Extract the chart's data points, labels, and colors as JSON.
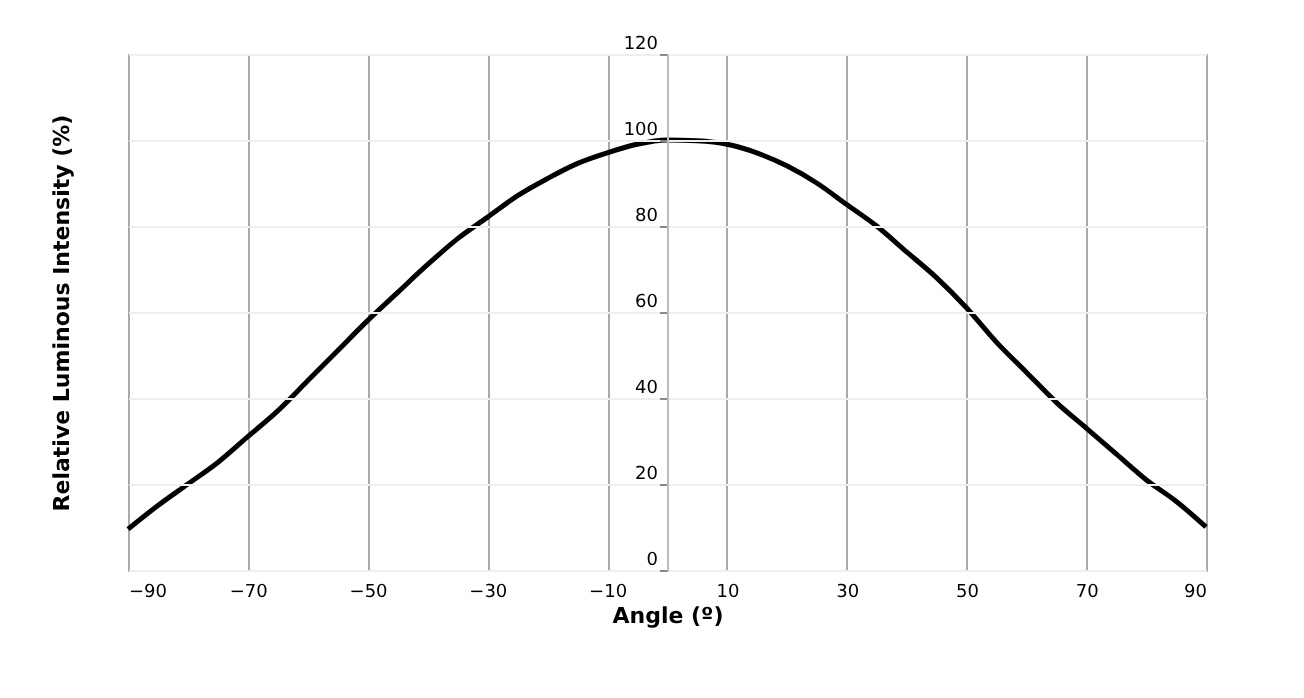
{
  "chart_data": {
    "type": "line",
    "xlabel": "Angle (º)",
    "ylabel": "Relative Luminous Intensity (%)",
    "x": [
      -90,
      -85,
      -80,
      -75,
      -70,
      -65,
      -60,
      -55,
      -50,
      -45,
      -40,
      -35,
      -30,
      -25,
      -20,
      -15,
      -10,
      -5,
      0,
      5,
      10,
      15,
      20,
      25,
      30,
      35,
      40,
      45,
      50,
      55,
      60,
      65,
      70,
      75,
      80,
      85,
      90
    ],
    "series": [
      {
        "color": "#000000",
        "values": [
          9.5,
          15,
          20,
          25,
          31,
          37,
          44,
          51,
          58,
          64.5,
          71,
          77,
          82,
          87,
          91,
          94.5,
          97,
          99,
          100,
          99.8,
          99,
          97,
          94,
          90,
          85,
          80,
          74,
          68,
          61,
          53,
          46,
          39,
          33,
          27,
          21,
          16,
          10
        ]
      }
    ],
    "xlim": [
      -90,
      90
    ],
    "xticks": [
      -90,
      -70,
      -50,
      -30,
      -10,
      10,
      30,
      50,
      70,
      90
    ],
    "ylim": [
      0,
      120
    ],
    "yticks": [
      0,
      20,
      40,
      60,
      80,
      100,
      120
    ],
    "grid": true,
    "legend": false,
    "marker": "none",
    "line_style": "solid"
  }
}
